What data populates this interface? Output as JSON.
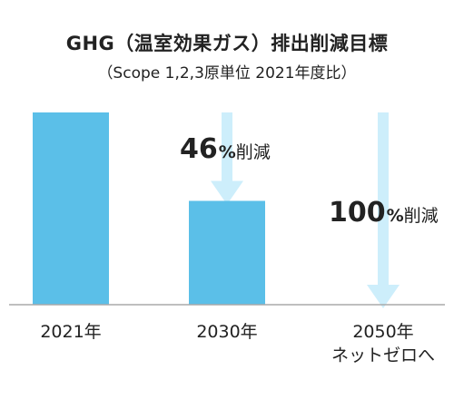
{
  "chart_data": {
    "type": "bar",
    "title": "GHG（温室効果ガス）排出削減目標",
    "subtitle": "（Scope 1,2,3原単位 2021年度比）",
    "categories": [
      {
        "lines": [
          "2021年"
        ]
      },
      {
        "lines": [
          "2030年"
        ]
      },
      {
        "lines": [
          "2050年",
          "ネットゼロへ"
        ]
      }
    ],
    "values": [
      100,
      54,
      0
    ],
    "ylim": [
      0,
      100
    ],
    "grid": false,
    "bar_color": "#5bbfe8",
    "arrow_color": "#cdeefb",
    "axis_color": "#aaaaaa",
    "annotations": [
      {
        "category_index": 1,
        "number": "46",
        "percent": "%",
        "text": "削減"
      },
      {
        "category_index": 2,
        "number": "100",
        "percent": "%",
        "text": "削減"
      }
    ]
  }
}
